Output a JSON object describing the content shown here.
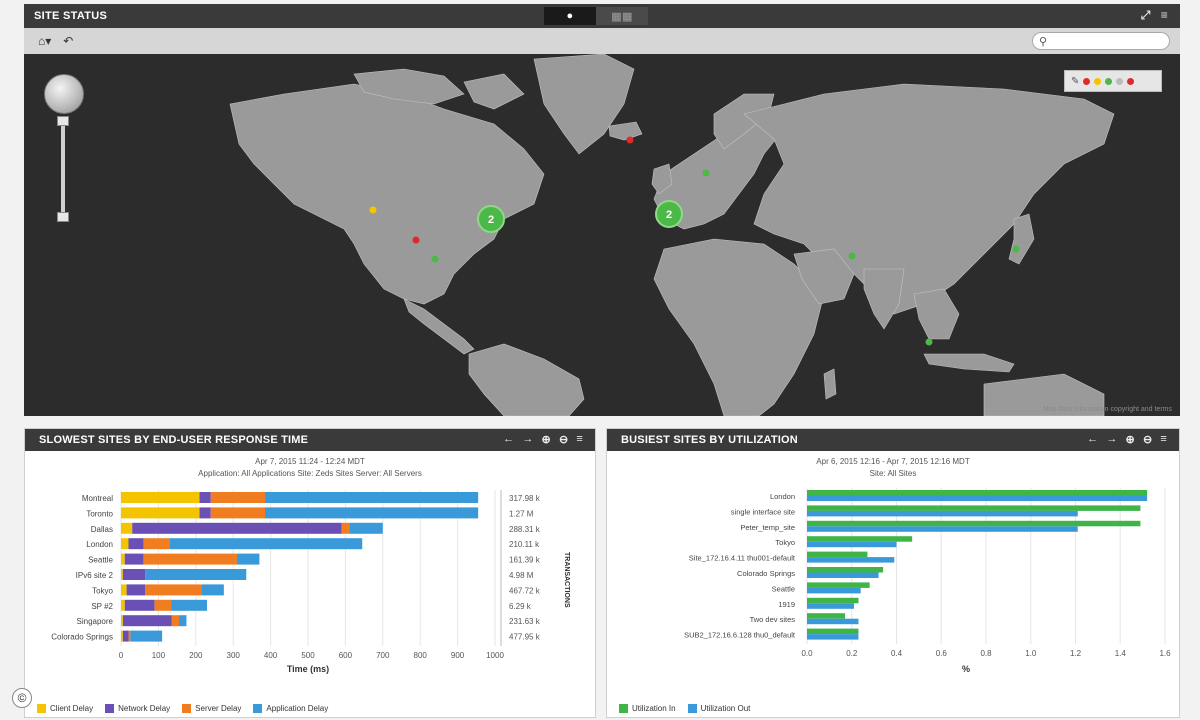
{
  "site_status": {
    "title": "SITE STATUS",
    "view_map_icon": "globe-icon",
    "view_list_icon": "table-icon",
    "search": {
      "placeholder": ""
    },
    "map": {
      "cluster_counts": [
        "2",
        "2"
      ],
      "legend_colors": [
        "#e02a2a",
        "#f5c400",
        "#4cb848",
        "#e02a2a"
      ],
      "attribution": "Map data information copyright and terms"
    }
  },
  "slowest": {
    "title": "SLOWEST SITES BY END-USER RESPONSE TIME",
    "date_range": "Apr 7, 2015 11:24 - 12:24 MDT",
    "filters_line": "Application: All Applications    Site: Zeds Sites    Server: All Servers",
    "xlabel": "Time (ms)",
    "side_label": "TRANSACTIONS",
    "legend": [
      "Client Delay",
      "Network Delay",
      "Server Delay",
      "Application Delay"
    ],
    "colors": [
      "#f5c400",
      "#6a4fb5",
      "#f07e20",
      "#3a9ad9"
    ]
  },
  "busiest": {
    "title": "BUSIEST SITES BY UTILIZATION",
    "date_range": "Apr 6, 2015 12:16 - Apr 7, 2015 12:16 MDT",
    "filters_line": "Site: All Sites",
    "xlabel": "%",
    "legend": [
      "Utilization In",
      "Utilization Out"
    ],
    "colors": [
      "#3fb548",
      "#3a9ad9"
    ]
  },
  "chart_data": [
    {
      "type": "bar",
      "orientation": "horizontal",
      "stacked": true,
      "title": "SLOWEST SITES BY END-USER RESPONSE TIME",
      "xlabel": "Time (ms)",
      "xlim": [
        0,
        1000
      ],
      "xticks": [
        0,
        100,
        200,
        300,
        400,
        500,
        600,
        700,
        800,
        900,
        1000
      ],
      "categories": [
        "Montreal",
        "Toronto",
        "Dallas",
        "London",
        "Seattle",
        "IPv6 site 2",
        "Tokyo",
        "SP #2",
        "Singapore",
        "Colorado Springs"
      ],
      "series": [
        {
          "name": "Client Delay",
          "values": [
            210,
            210,
            30,
            20,
            10,
            5,
            15,
            10,
            5,
            5
          ]
        },
        {
          "name": "Network Delay",
          "values": [
            30,
            30,
            560,
            40,
            50,
            60,
            50,
            80,
            130,
            15
          ]
        },
        {
          "name": "Server Delay",
          "values": [
            145,
            145,
            20,
            70,
            250,
            0,
            150,
            45,
            20,
            5
          ]
        },
        {
          "name": "Application Delay",
          "values": [
            570,
            570,
            90,
            515,
            60,
            270,
            60,
            95,
            20,
            85
          ]
        }
      ],
      "transactions": [
        "317.98 k",
        "1.27 M",
        "288.31 k",
        "210.11 k",
        "161.39 k",
        "4.98 M",
        "467.72 k",
        "6.29 k",
        "231.63 k",
        "477.95 k"
      ]
    },
    {
      "type": "bar",
      "orientation": "horizontal",
      "title": "BUSIEST SITES BY UTILIZATION",
      "xlabel": "%",
      "xlim": [
        0,
        1.6
      ],
      "xticks": [
        0.0,
        0.2,
        0.4,
        0.6,
        0.8,
        1.0,
        1.2,
        1.4,
        1.6
      ],
      "categories": [
        "London",
        "single interface site",
        "Peter_temp_site",
        "Tokyo",
        "Site_172.16.4.11 thu001-default",
        "Colorado Springs",
        "Seattle",
        "1919",
        "Two dev sites",
        "SUB2_172.16.6.128 thu0_default"
      ],
      "series": [
        {
          "name": "Utilization In",
          "values": [
            1.52,
            1.49,
            1.49,
            0.47,
            0.27,
            0.34,
            0.28,
            0.23,
            0.17,
            0.23
          ]
        },
        {
          "name": "Utilization Out",
          "values": [
            1.52,
            1.21,
            1.21,
            0.4,
            0.39,
            0.32,
            0.24,
            0.21,
            0.23,
            0.23
          ]
        }
      ]
    }
  ]
}
